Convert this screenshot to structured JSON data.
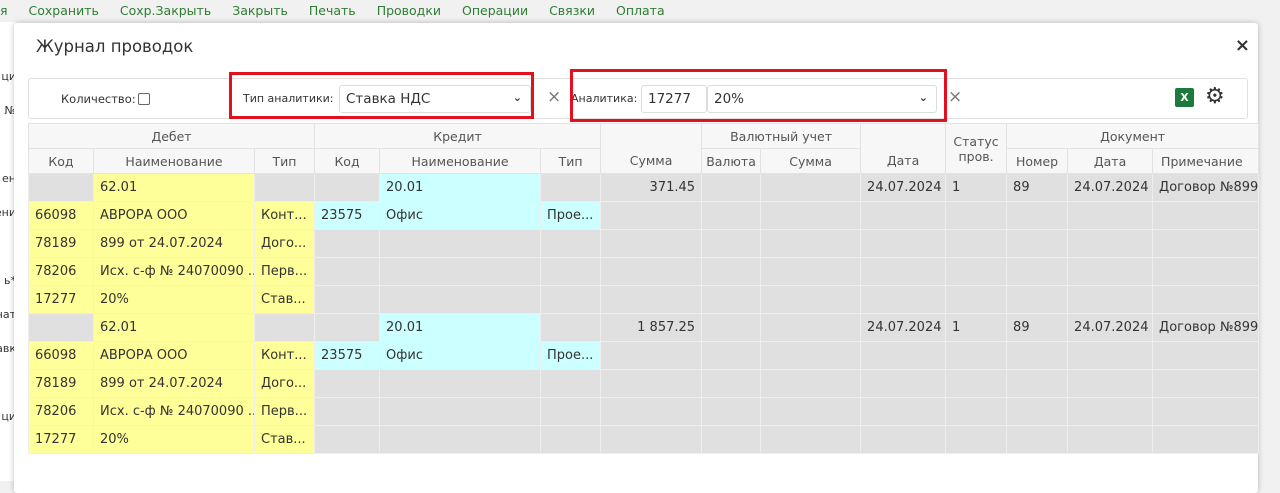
{
  "toolbar": [
    "я",
    "Сохранить",
    "Сохр.Закрыть",
    "Закрыть",
    "Печать",
    "Проводки",
    "Операции",
    "Связки",
    "Оплата"
  ],
  "background_fragments": [
    "ци",
    "№",
    "ен",
    "ени",
    "ь*",
    "нат",
    "авк",
    "ци"
  ],
  "modal": {
    "title": "Журнал проводок",
    "close": "×"
  },
  "filter": {
    "quantity_label": "Количество:",
    "quantity_checked": false,
    "analytics_type_label": "Тип аналитики:",
    "analytics_type_value": "Ставка НДС",
    "analytics_label": "Аналитика:",
    "analytics_code": "17277",
    "analytics_value": "20%",
    "clear": "×",
    "excel": "X",
    "highlight_color": "#e3101e"
  },
  "table": {
    "groups": {
      "debit": "Дебет",
      "credit": "Кредит",
      "currency": "Валютный учет",
      "status": "Статус пров.",
      "document": "Документ"
    },
    "headers": {
      "code": "Код",
      "name": "Наименование",
      "type": "Тип",
      "sum": "Сумма",
      "currency": "Валюта",
      "cur_sum": "Сумма",
      "date": "Дата",
      "number": "Номер",
      "doc_date": "Дата",
      "note": "Примечание"
    },
    "entries": [
      {
        "debit_account": "62.01",
        "credit_account": "20.01",
        "sum": "371.45",
        "date": "24.07.2024",
        "status": "1",
        "number": "89",
        "doc_date": "24.07.2024",
        "note": "Договор №899",
        "debit_analytics": [
          [
            "66098",
            "АВРОРА ООО",
            "Конт..."
          ],
          [
            "78189",
            "899 от 24.07.2024",
            "Дого..."
          ],
          [
            "78206",
            "Исх. с-ф № 24070090 ...",
            "Перв..."
          ],
          [
            "17277",
            "20%",
            "Став..."
          ]
        ],
        "credit_analytics": [
          [
            "23575",
            "Офис",
            "Прое..."
          ]
        ]
      },
      {
        "debit_account": "62.01",
        "credit_account": "20.01",
        "sum": "1 857.25",
        "date": "24.07.2024",
        "status": "1",
        "number": "89",
        "doc_date": "24.07.2024",
        "note": "Договор №899",
        "debit_analytics": [
          [
            "66098",
            "АВРОРА ООО",
            "Конт..."
          ],
          [
            "78189",
            "899 от 24.07.2024",
            "Дого..."
          ],
          [
            "78206",
            "Исх. с-ф № 24070090 ...",
            "Перв..."
          ],
          [
            "17277",
            "20%",
            "Став..."
          ]
        ],
        "credit_analytics": [
          [
            "23575",
            "Офис",
            "Прое..."
          ]
        ]
      }
    ]
  }
}
